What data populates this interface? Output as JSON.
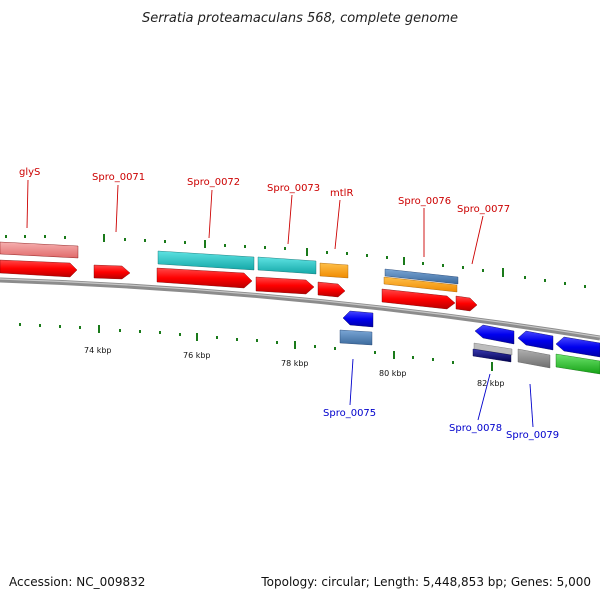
{
  "title": "Serratia proteamaculans 568, complete genome",
  "footer": {
    "accession": "Accession: NC_009832",
    "summary": "Topology: circular; Length: 5,448,853 bp; Genes: 5,000"
  },
  "colors": {
    "backbone": "#8c8c8c",
    "tick": "#1a7a1a",
    "label_forward": "#cc0000",
    "label_reverse": "#0000cc"
  },
  "scale_labels": [
    "74 kbp",
    "76 kbp",
    "78 kbp",
    "80 kbp",
    "82 kbp"
  ],
  "gene_labels_forward": [
    "glyS",
    "Spro_0071",
    "Spro_0072",
    "Spro_0073",
    "mtlR",
    "Spro_0076",
    "Spro_0077"
  ],
  "gene_labels_reverse": [
    "Spro_0075",
    "Spro_0078",
    "Spro_0079"
  ]
}
